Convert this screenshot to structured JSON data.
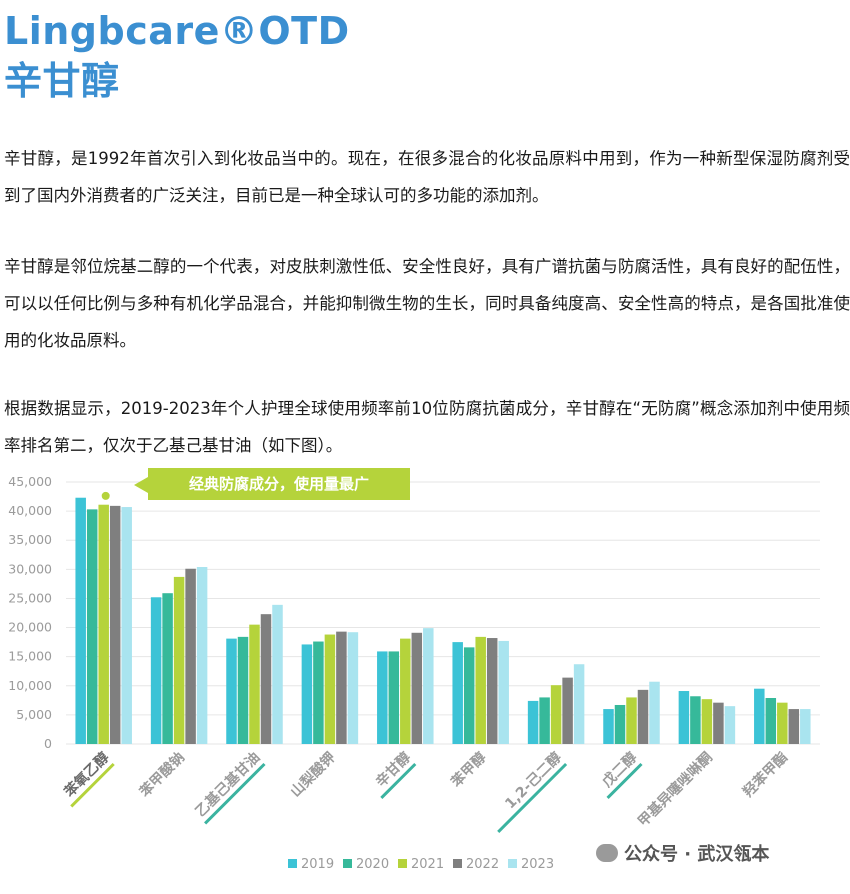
{
  "header": {
    "title_line1": "Lingbcare®OTD",
    "title_line2": "辛甘醇"
  },
  "paragraphs": [
    "辛甘醇，是1992年首次引入到化妆品当中的。现在，在很多混合的化妆品原料中用到，作为一种新型保湿防腐剂受到了国内外消费者的广泛关注，目前已是一种全球认可的多功能的添加剂。",
    "辛甘醇是邻位烷基二醇的一个代表，对皮肤刺激性低、安全性良好，具有广谱抗菌与防腐活性，具有良好的配伍性，可以以任何比例与多种有机化学品混合，并能抑制微生物的生长，同时具备纯度高、安全性高的特点，是各国批准使用的化妆品原料。",
    "根据数据显示，2019-2023年个人护理全球使用频率前10位防腐抗菌成分，辛甘醇在“无防腐”概念添加剂中使用频率排名第二，仅次于乙基己基甘油（如下图）。"
  ],
  "callout": "经典防腐成分，使用量最广",
  "watermark": "公众号 · 武汉瓴本",
  "chart_data": {
    "type": "bar",
    "categories": [
      "苯氧乙醇",
      "苯甲酸钠",
      "乙基己基甘油",
      "山梨酸钾",
      "辛甘醇",
      "苯甲醇",
      "1,2-己二醇",
      "戊二醇",
      "甲基异噻唑啉酮",
      "羟苯甲酯"
    ],
    "highlighted_categories": [
      "苯氧乙醇",
      "乙基己基甘油",
      "辛甘醇",
      "1,2-己二醇",
      "戊二醇"
    ],
    "series": [
      {
        "name": "2019",
        "color": "#3cc3d6",
        "values": [
          42300,
          25200,
          18100,
          17100,
          15900,
          17500,
          7400,
          6000,
          9100,
          9500
        ]
      },
      {
        "name": "2020",
        "color": "#36b99a",
        "values": [
          40300,
          25900,
          18400,
          17600,
          15900,
          16600,
          8000,
          6700,
          8200,
          7900
        ]
      },
      {
        "name": "2021",
        "color": "#b5d33b",
        "values": [
          41100,
          28700,
          20500,
          18800,
          18100,
          18400,
          10100,
          8000,
          7700,
          7100
        ]
      },
      {
        "name": "2022",
        "color": "#7f7f7f",
        "values": [
          40900,
          30100,
          22300,
          19300,
          19100,
          18200,
          11400,
          9300,
          7100,
          6000
        ]
      },
      {
        "name": "2023",
        "color": "#a9e4ef",
        "values": [
          40700,
          30400,
          23900,
          19200,
          19900,
          17700,
          13700,
          10700,
          6500,
          6000
        ]
      }
    ],
    "ylim": [
      0,
      45000
    ],
    "yticks": [
      "0",
      "5,000",
      "10,000",
      "15,000",
      "20,000",
      "25,000",
      "30,000",
      "35,000",
      "40,000",
      "45,000"
    ],
    "ytick_values": [
      0,
      5000,
      10000,
      15000,
      20000,
      25000,
      30000,
      35000,
      40000,
      45000
    ],
    "legend_position": "bottom",
    "grid": true,
    "highlight_color": "#b5d33b",
    "underline_color": "#3bb3a0",
    "axis_label_color": "#9b9b9b"
  }
}
